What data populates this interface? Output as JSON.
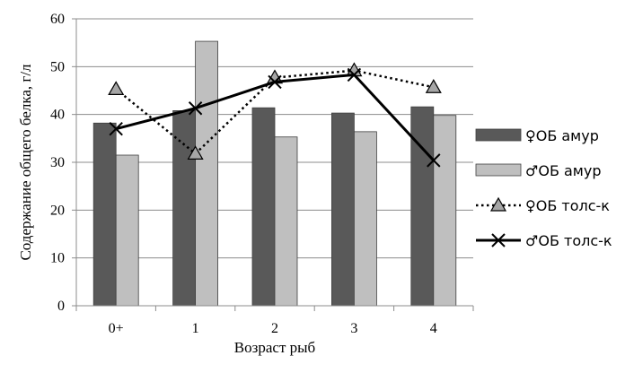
{
  "chart_data": {
    "type": "bar",
    "categories": [
      "0+",
      "1",
      "2",
      "3",
      "4"
    ],
    "xlabel": "Возраст рыб",
    "ylabel": "Содержание общего белка, г/л",
    "ylim": [
      0,
      60
    ],
    "yticks": [
      0,
      10,
      20,
      30,
      40,
      50,
      60
    ],
    "grid": true,
    "legend_position": "right",
    "series": [
      {
        "name": "♀ОБ амур",
        "kind": "bar",
        "color": "#595959",
        "values": [
          38.2,
          40.8,
          41.4,
          40.3,
          41.6
        ]
      },
      {
        "name": "♂ОБ амур",
        "kind": "bar",
        "color": "#bfbfbf",
        "values": [
          31.5,
          55.3,
          35.3,
          36.4,
          39.8
        ]
      },
      {
        "name": "♀ОБ толс-к",
        "kind": "line",
        "style": "dotted",
        "marker": "triangle",
        "color": "#000000",
        "marker_fill": "#a6a6a6",
        "values": [
          45.3,
          31.8,
          47.7,
          49.2,
          45.7
        ]
      },
      {
        "name": "♂ОБ толс-к",
        "kind": "line",
        "style": "solid",
        "marker": "x",
        "color": "#000000",
        "values": [
          37.0,
          41.3,
          46.8,
          48.3,
          30.4
        ]
      }
    ]
  }
}
